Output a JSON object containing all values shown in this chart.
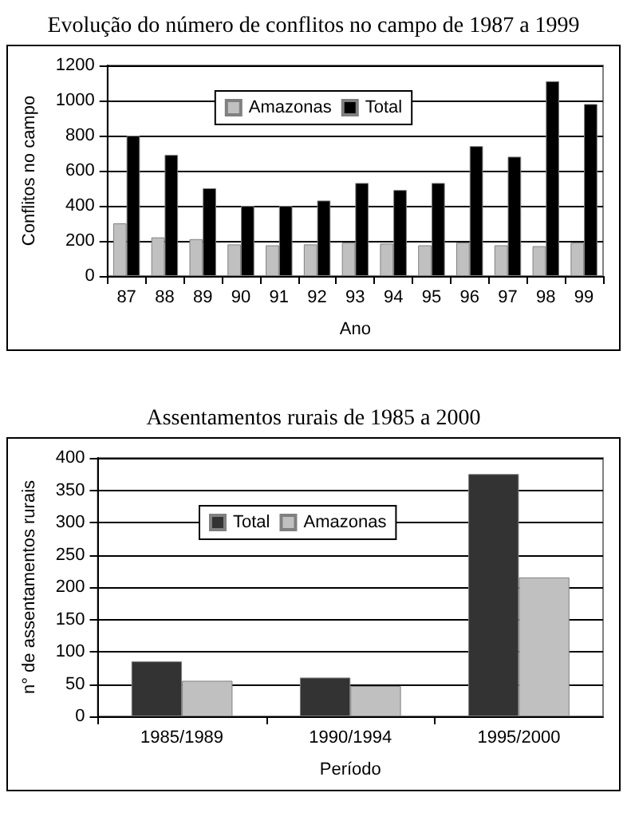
{
  "chart_data": [
    {
      "type": "bar",
      "title": "Evolução do número de conflitos no campo de 1987 a 1999",
      "xlabel": "Ano",
      "ylabel": "Conflitos no campo",
      "categories": [
        "87",
        "88",
        "89",
        "90",
        "91",
        "92",
        "93",
        "94",
        "95",
        "96",
        "97",
        "98",
        "99"
      ],
      "series": [
        {
          "name": "Amazonas",
          "color": "#c0c0c0",
          "values": [
            300,
            220,
            210,
            180,
            175,
            180,
            190,
            185,
            175,
            190,
            175,
            170,
            190
          ]
        },
        {
          "name": "Total",
          "color": "#000000",
          "values": [
            800,
            690,
            500,
            400,
            400,
            430,
            530,
            490,
            530,
            740,
            680,
            1110,
            980
          ]
        }
      ],
      "ylim": [
        0,
        1200
      ],
      "yticks": [
        0,
        200,
        400,
        600,
        800,
        1000,
        1200
      ],
      "grid": "y",
      "legend": "top"
    },
    {
      "type": "bar",
      "title": "Assentamentos rurais de 1985 a 2000",
      "xlabel": "Período",
      "ylabel": "n° de assentamentos rurais",
      "categories": [
        "1985/1989",
        "1990/1994",
        "1995/2000"
      ],
      "series": [
        {
          "name": "Total",
          "color": "#333333",
          "values": [
            85,
            60,
            375
          ]
        },
        {
          "name": "Amazonas",
          "color": "#c0c0c0",
          "values": [
            55,
            47,
            215
          ]
        }
      ],
      "ylim": [
        0,
        400
      ],
      "yticks": [
        0,
        50,
        100,
        150,
        200,
        250,
        300,
        350,
        400
      ],
      "grid": "y",
      "legend": "top left"
    }
  ]
}
